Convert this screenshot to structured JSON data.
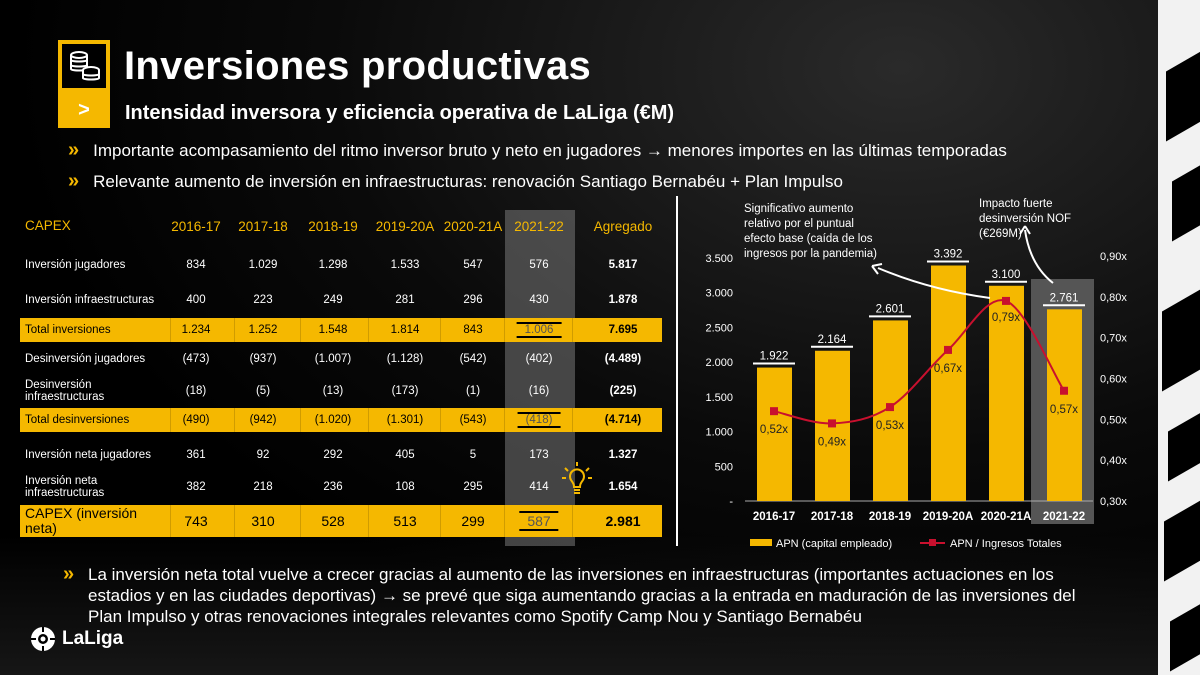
{
  "header": {
    "title": "Inversiones productivas",
    "subtitle": "Intensidad inversora y eficiencia operativa de LaLiga (€M)",
    "icon": "coins-icon",
    "arrow": ">"
  },
  "bullets": [
    "Importante acompasamiento del ritmo inversor bruto y neto en jugadores → menores importes en las últimas temporadas",
    "Relevante aumento de inversión en infraestructuras: renovación Santiago Bernabéu + Plan Impulso"
  ],
  "table": {
    "headers": [
      "CAPEX",
      "2016-17",
      "2017-18",
      "2018-19",
      "2019-20A",
      "2020-21A",
      "2021-22",
      "Agregado"
    ],
    "rows": [
      {
        "label": "Inversión jugadores",
        "values": [
          "834",
          "1.029",
          "1.298",
          "1.533",
          "547",
          "576",
          "5.817"
        ],
        "highlight": false
      },
      {
        "label": "Inversión infraestructuras",
        "values": [
          "400",
          "223",
          "249",
          "281",
          "296",
          "430",
          "1.878"
        ],
        "highlight": false
      },
      {
        "label": "Total inversiones",
        "values": [
          "1.234",
          "1.252",
          "1.548",
          "1.814",
          "843",
          "1.006",
          "7.695"
        ],
        "highlight": true
      },
      {
        "label": "Desinversión jugadores",
        "values": [
          "(473)",
          "(937)",
          "(1.007)",
          "(1.128)",
          "(542)",
          "(402)",
          "(4.489)"
        ],
        "highlight": false
      },
      {
        "label": "Desinversión infraestructuras",
        "values": [
          "(18)",
          "(5)",
          "(13)",
          "(173)",
          "(1)",
          "(16)",
          "(225)"
        ],
        "highlight": false
      },
      {
        "label": "Total desinversiones",
        "values": [
          "(490)",
          "(942)",
          "(1.020)",
          "(1.301)",
          "(543)",
          "(418)",
          "(4.714)"
        ],
        "highlight": true
      },
      {
        "label": "Inversión neta jugadores",
        "values": [
          "361",
          "92",
          "292",
          "405",
          "5",
          "173",
          "1.327"
        ],
        "highlight": false
      },
      {
        "label": "Inversión neta infraestructuras",
        "values": [
          "382",
          "218",
          "236",
          "108",
          "295",
          "414",
          "1.654"
        ],
        "highlight": false
      },
      {
        "label": "CAPEX (inversión neta)",
        "values": [
          "743",
          "310",
          "528",
          "513",
          "299",
          "587",
          "2.981"
        ],
        "highlight": true
      }
    ]
  },
  "chart_data": {
    "type": "bar+line",
    "categories": [
      "2016-17",
      "2017-18",
      "2018-19",
      "2019-20A",
      "2020-21A",
      "2021-22"
    ],
    "series": [
      {
        "name": "APN (capital empleado)",
        "type": "bar",
        "axis": "left",
        "values": [
          1922,
          2164,
          2601,
          3392,
          3100,
          2761
        ],
        "labels": [
          "1.922",
          "2.164",
          "2.601",
          "3.392",
          "3.100",
          "2.761"
        ]
      },
      {
        "name": "APN / Ingresos Totales",
        "type": "line",
        "axis": "right",
        "values": [
          0.52,
          0.49,
          0.53,
          0.67,
          0.79,
          0.57
        ],
        "labels": [
          "0,52x",
          "0,49x",
          "0,53x",
          "0,67x",
          "0,79x",
          "0,57x"
        ]
      }
    ],
    "left_axis": {
      "ticks": [
        "-",
        "500",
        "1.000",
        "1.500",
        "2.000",
        "2.500",
        "3.000",
        "3.500"
      ],
      "range": [
        0,
        3500
      ]
    },
    "right_axis": {
      "ticks": [
        "0,30x",
        "0,40x",
        "0,50x",
        "0,60x",
        "0,70x",
        "0,80x",
        "0,90x"
      ],
      "range": [
        0.3,
        0.9
      ]
    },
    "annotations": [
      "Significativo aumento relativo por el puntual efecto base (caída de los ingresos por la pandemia)",
      "Impacto fuerte desinversión NOF (€269M)"
    ],
    "highlighted_category": "2021-22",
    "legend": "bottom",
    "colors": {
      "bar": "#f5b800",
      "line": "#c8102e",
      "highlight": "#555555"
    }
  },
  "footer": {
    "paragraph": "La inversión neta total vuelve a crecer gracias al aumento de las inversiones en infraestructuras (importantes actuaciones en los estadios y en las ciudades deportivas) → se prevé que siga aumentando gracias a la entrada en maduración de las inversiones del Plan Impulso y otras renovaciones integrales relevantes como Spotify Camp Nou y Santiago Bernabéu",
    "logo": "LaLiga"
  },
  "colors": {
    "accent": "#f5b800",
    "background": "#000000"
  }
}
